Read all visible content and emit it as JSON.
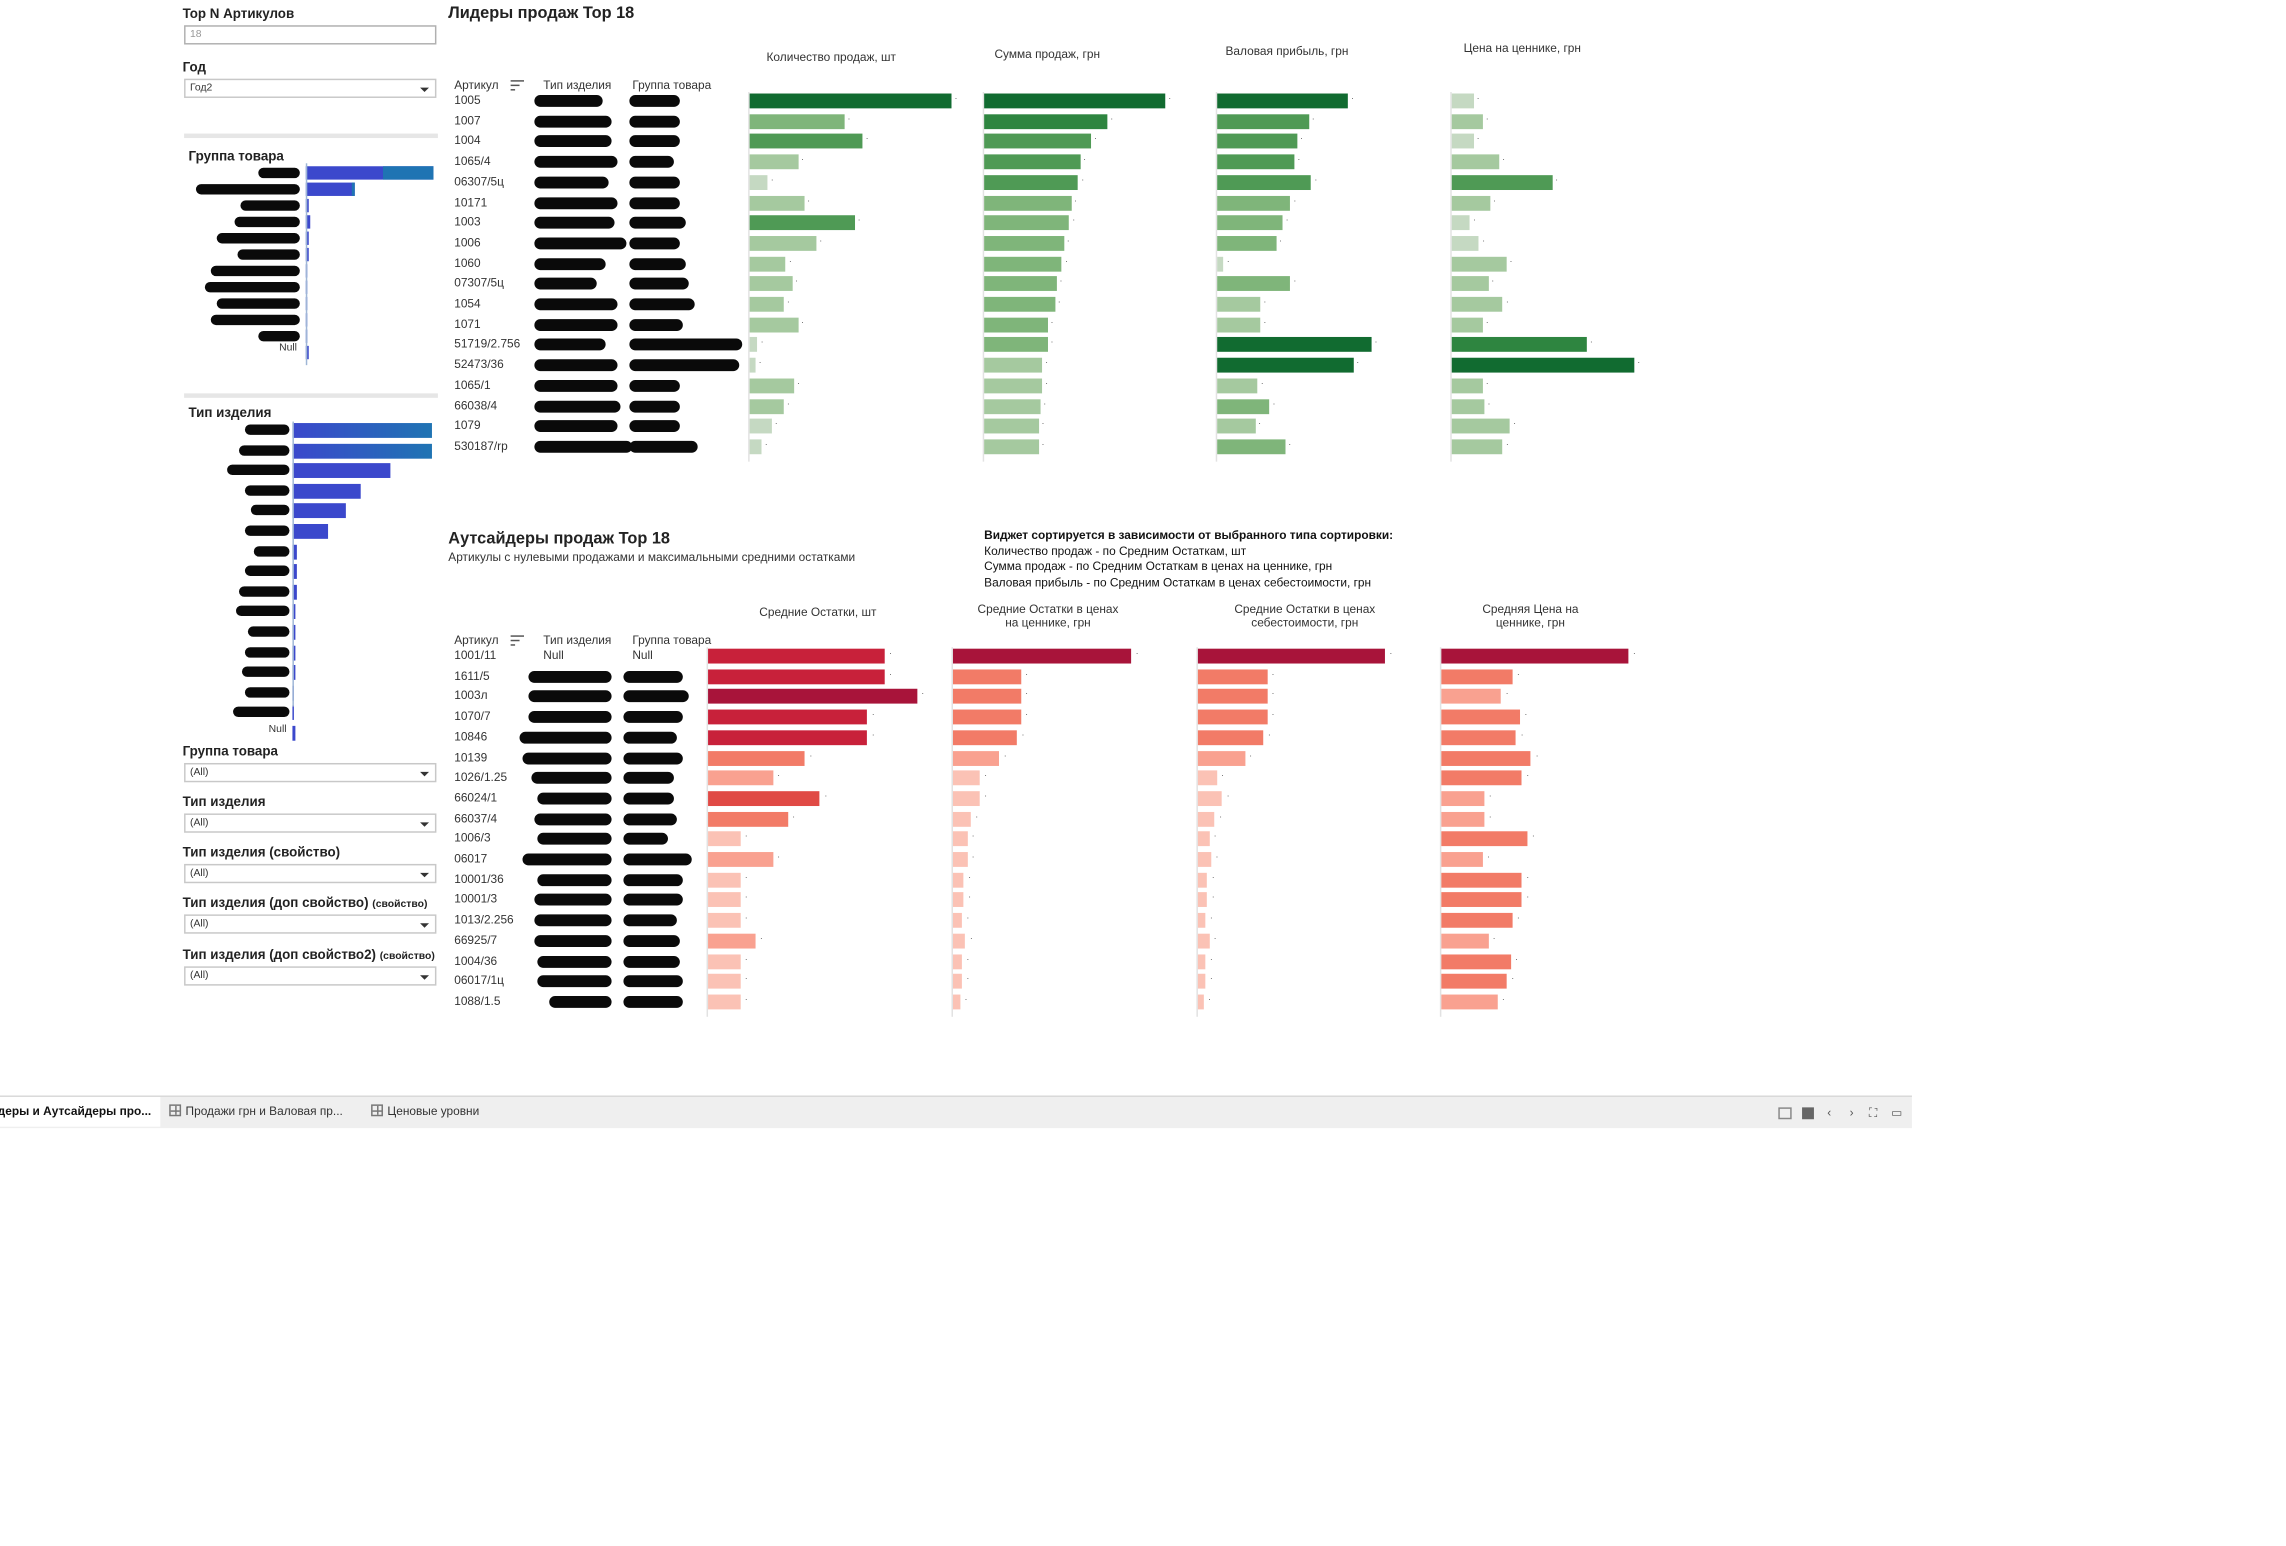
{
  "controls": {
    "topn_label": "Top N Артикулов",
    "topn_value": "18",
    "year_label": "Год",
    "year_value": "Год2",
    "group_filter_label": "Группа товара",
    "group_filter_value": "(All)",
    "type_filter_label": "Тип изделия",
    "type_filter_value": "(All)",
    "prop_filter_label": "Тип изделия (свойство)",
    "prop_filter_value": "(All)",
    "addprop_filter_label": "Тип изделия (доп свойство)",
    "addprop_filter_suffix": "(свойство)",
    "addprop_filter_value": "(All)",
    "addprop2_filter_label": "Тип изделия (доп свойство2)",
    "addprop2_filter_suffix": "(свойство)",
    "addprop2_filter_value": "(All)"
  },
  "mini_group": {
    "title": "Группа товара",
    "null_label": "Null",
    "values": [
      1.0,
      0.38,
      0.02,
      0.03,
      0.025,
      0.02,
      0.015,
      0.012,
      0.01,
      0.01,
      0.008,
      0.02
    ],
    "light_fill": [
      0.6,
      0.95,
      0,
      0,
      0,
      0,
      0,
      0,
      0,
      0,
      0,
      0
    ]
  },
  "mini_type": {
    "title": "Тип изделия",
    "null_label": "Null",
    "values": [
      1.0,
      1.0,
      0.7,
      0.49,
      0.38,
      0.26,
      0.03,
      0.03,
      0.03,
      0.02,
      0.02,
      0.02,
      0.02,
      0.015,
      0.015,
      0.02
    ]
  },
  "leaders": {
    "title": "Лидеры продаж Top 18",
    "col_article": "Артикул",
    "col_type": "Тип изделия",
    "col_group": "Группа товара",
    "measures": [
      "Количество продаж, шт",
      "Сумма продаж, грн",
      "Валовая прибыль, грн",
      "Цена на ценнике, грн"
    ],
    "articles": [
      "1005",
      "1007",
      "1004",
      "1065/4",
      "06307/5ц",
      "10171",
      "1003",
      "1006",
      "1060",
      "07307/5ц",
      "1054",
      "1071",
      "51719/2.756",
      "52473/36",
      "1065/1",
      "66038/4",
      "1079",
      "530187/rp"
    ],
    "qty": [
      100,
      47,
      56,
      24,
      9,
      27,
      52,
      33,
      18,
      21,
      17,
      24,
      4,
      3,
      22,
      17,
      11,
      6
    ],
    "sales": [
      100,
      68,
      59,
      53,
      52,
      48,
      47,
      44,
      43,
      40,
      39,
      35,
      35,
      32,
      32,
      31,
      30,
      30
    ],
    "profit": [
      100,
      70,
      61,
      59,
      72,
      56,
      50,
      45,
      5,
      56,
      33,
      33,
      118,
      104,
      31,
      40,
      29,
      52
    ],
    "price": [
      12,
      17,
      12,
      26,
      55,
      21,
      10,
      15,
      30,
      20,
      28,
      17,
      74,
      100,
      17,
      18,
      32,
      28
    ]
  },
  "outsiders": {
    "title": "Аутсайдеры продаж Top 18",
    "subtitle": "Артикулы с нулевыми продажами и максимальными средними остатками",
    "note_title": "Виджет сортируется в зависимости от выбранного типа сортировки:",
    "note_lines": [
      "Количество продаж - по Средним Остаткам, шт",
      "Сумма продаж - по Средним Остаткам в ценах на ценнике, грн",
      "Валовая прибыль - по Средним Остаткам в ценах себестоимости, грн"
    ],
    "col_article": "Артикул",
    "col_type": "Тип изделия",
    "col_group": "Группа товара",
    "first_type": "Null",
    "first_group": "Null",
    "measures": [
      "Средние Остатки, шт",
      "Средние Остатки в ценах на ценнике, грн",
      "Средние Остатки в ценах себестоимости, грн",
      "Средняя Цена на ценнике, грн"
    ],
    "articles": [
      "1001/11",
      "1611/5",
      "1003л",
      "1070/7",
      "10846",
      "10139",
      "1026/1.25",
      "66024/1",
      "66037/4",
      "1006/3",
      "06017",
      "10001/36",
      "10001/3",
      "1013/2.256",
      "66925/7",
      "1004/36",
      "06017/1ц",
      "1088/1.5"
    ],
    "stock": [
      82,
      82,
      97,
      74,
      74,
      45,
      30,
      52,
      37,
      15,
      30,
      15,
      15,
      15,
      22,
      15,
      15,
      15
    ],
    "stock_price": [
      100,
      38,
      38,
      38,
      36,
      26,
      15,
      15,
      10,
      8,
      8,
      6,
      6,
      5,
      7,
      5,
      5,
      4
    ],
    "stock_cost": [
      100,
      37,
      37,
      37,
      35,
      25,
      10,
      13,
      9,
      6,
      7,
      5,
      5,
      4,
      6,
      4,
      4,
      3
    ],
    "avg_price": [
      100,
      38,
      32,
      42,
      40,
      48,
      43,
      23,
      23,
      46,
      22,
      43,
      43,
      38,
      25,
      37,
      35,
      30
    ]
  },
  "tabs": [
    "Лидеры и Аутсайдеры про...",
    "Продажи грн  и Валовая пр...",
    "Ценовые уровни"
  ],
  "colors": {
    "green_scale": [
      "#c5d9c2",
      "#a5c99f",
      "#7fb57a",
      "#4f9a55",
      "#2e8540",
      "#116b30"
    ],
    "red_scale": [
      "#fbc2b5",
      "#f9a190",
      "#f27b67",
      "#e04a45",
      "#c8213a",
      "#a8143a"
    ],
    "mini_blue": "#3b48cc",
    "mini_teal": "#1f74b3"
  }
}
